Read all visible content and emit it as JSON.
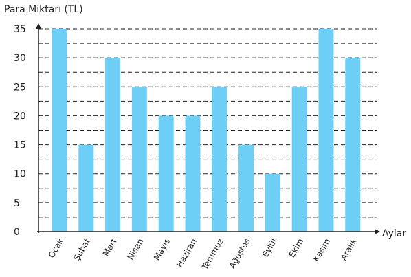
{
  "chart_data": {
    "type": "bar",
    "title": "",
    "ylabel": "Para Miktarı (TL)",
    "xlabel": "Aylar",
    "categories": [
      "Ocak",
      "Şubat",
      "Mart",
      "Nisan",
      "Mayıs",
      "Haziran",
      "Temmuz",
      "Ağustos",
      "Eylül",
      "Ekim",
      "Kasım",
      "Aralık"
    ],
    "values": [
      35,
      15,
      30,
      25,
      20,
      20,
      25,
      15,
      10,
      25,
      35,
      30
    ],
    "ylim": [
      0,
      35
    ],
    "yticks": [
      "0",
      "5",
      "10",
      "15",
      "20",
      "25",
      "30",
      "35"
    ],
    "grid": "dashed horizontal lines every 2.5",
    "bar_color": "#6dcff6",
    "axis_color": "#222222"
  }
}
